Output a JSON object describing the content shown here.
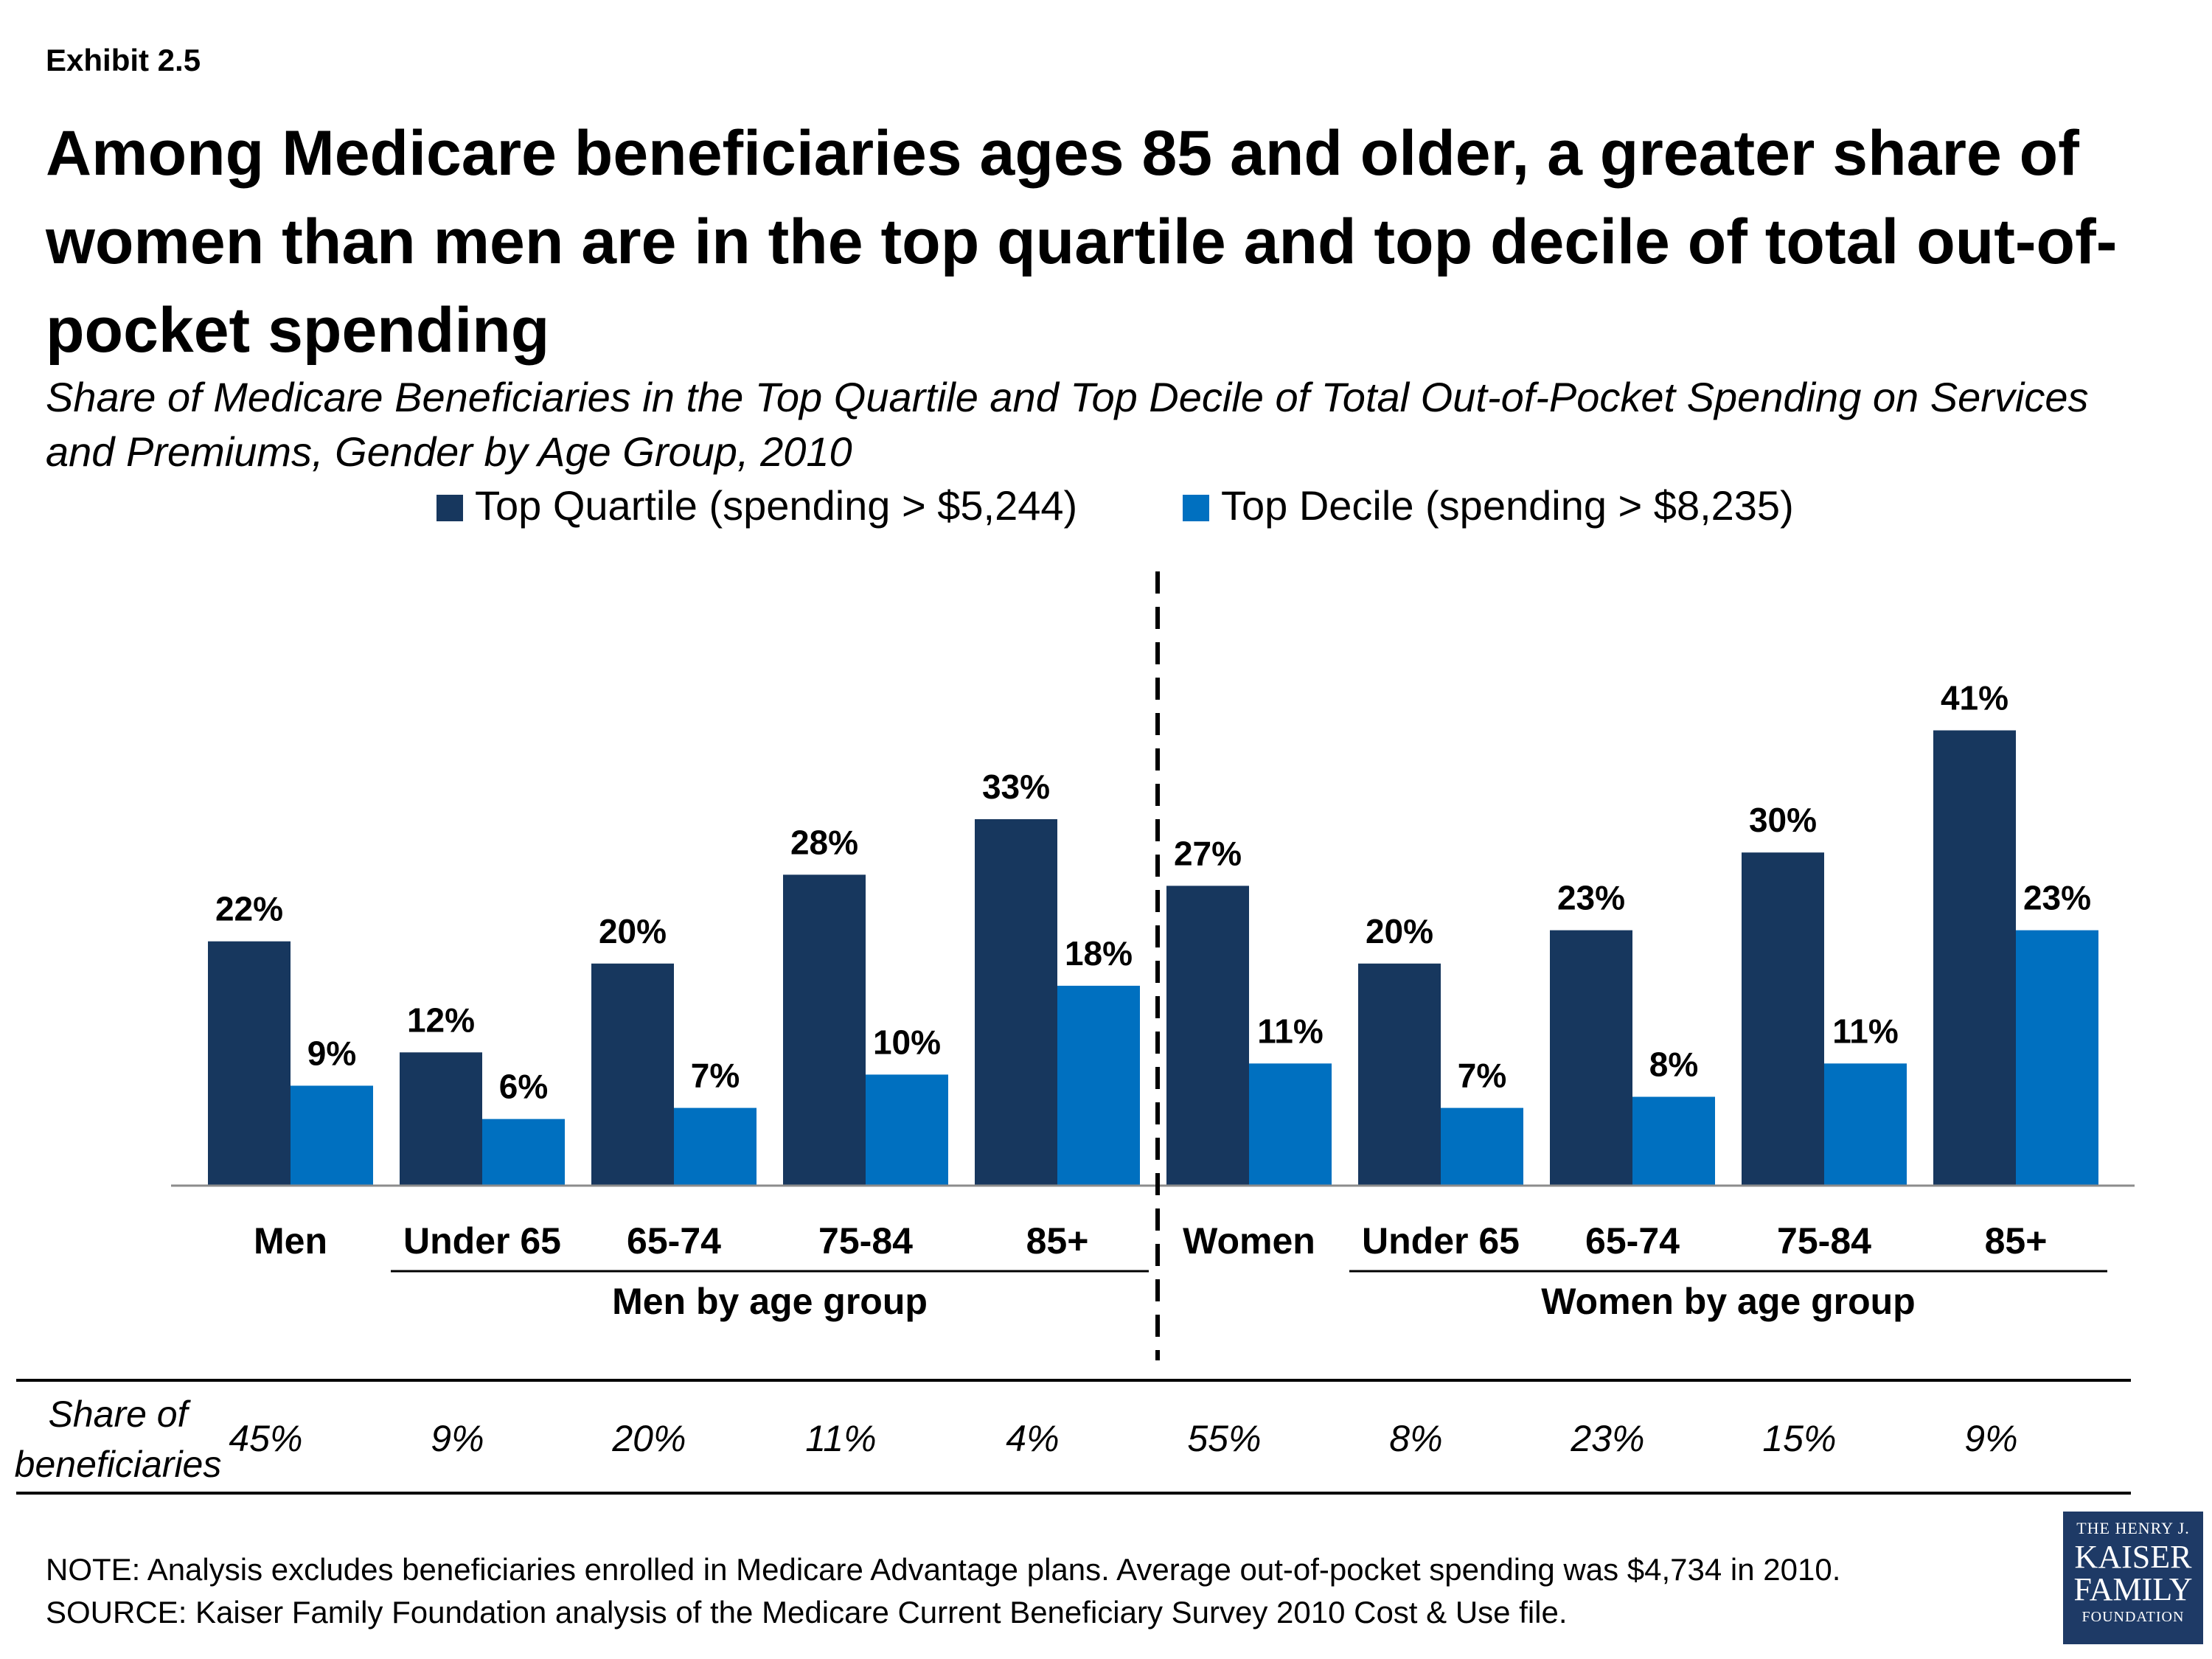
{
  "header": {
    "exhibit": "Exhibit 2.5",
    "title": "Among Medicare beneficiaries ages 85 and older, a greater share of women than men are in the top quartile and top decile of total out-of-pocket spending",
    "subtitle": "Share of Medicare Beneficiaries in the Top Quartile and Top Decile of Total Out-of-Pocket Spending on Services and Premiums, Gender by Age Group, 2010"
  },
  "chart_data": {
    "type": "bar",
    "categories": [
      "Men",
      "Under 65",
      "65-74",
      "75-84",
      "85+",
      "Women",
      "Under 65",
      "65-74",
      "75-84",
      "85+"
    ],
    "series": [
      {
        "name": "Top Quartile (spending > $5,244)",
        "values": [
          22,
          12,
          20,
          28,
          33,
          27,
          20,
          23,
          30,
          41
        ],
        "labels": [
          "22%",
          "12%",
          "20%",
          "28%",
          "33%",
          "27%",
          "20%",
          "23%",
          "30%",
          "41%"
        ],
        "color": "#17375e"
      },
      {
        "name": "Top Decile (spending > $8,235)",
        "values": [
          9,
          6,
          7,
          10,
          18,
          11,
          7,
          8,
          11,
          23
        ],
        "labels": [
          "9%",
          "6%",
          "7%",
          "10%",
          "18%",
          "11%",
          "7%",
          "8%",
          "11%",
          "23%"
        ],
        "color": "#0070c0"
      }
    ],
    "groups": [
      {
        "label": "Men by age group",
        "categories": [
          1,
          2,
          3,
          4
        ]
      },
      {
        "label": "Women by age group",
        "categories": [
          6,
          7,
          8,
          9
        ]
      }
    ],
    "ylim": [
      0,
      45
    ],
    "grid": false,
    "legend_position": "top-center",
    "divider_after_category": 4
  },
  "share_table": {
    "label": "Share of beneficiaries",
    "values": [
      "45%",
      "9%",
      "20%",
      "11%",
      "4%",
      "55%",
      "8%",
      "23%",
      "15%",
      "9%"
    ]
  },
  "notes": {
    "note": "NOTE: Analysis excludes beneficiaries enrolled in Medicare Advantage plans. Average out-of-pocket spending was $4,734 in 2010.",
    "source": "SOURCE: Kaiser Family Foundation analysis of the Medicare Current Beneficiary Survey 2010 Cost & Use file."
  },
  "logo": {
    "line1": "THE HENRY J.",
    "line2": "KAISER",
    "line3": "FAMILY",
    "line4": "FOUNDATION"
  }
}
